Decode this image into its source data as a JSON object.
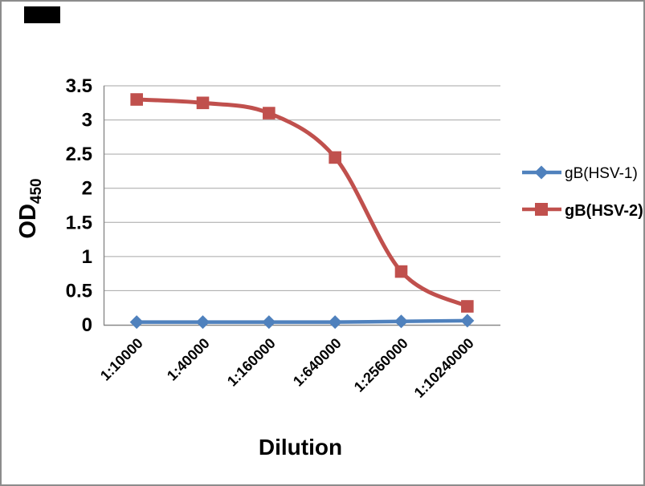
{
  "chart_data": {
    "type": "line",
    "title": "",
    "xlabel": "Dilution",
    "ylabel_main": "OD",
    "ylabel_sub": "450",
    "categories": [
      "1:10000",
      "1:40000",
      "1:160000",
      "1:640000",
      "1:2560000",
      "1:10240000"
    ],
    "series": [
      {
        "name": "gB(HSV-1)",
        "color": "#4F81BD",
        "marker": "diamond",
        "values": [
          0.04,
          0.04,
          0.04,
          0.04,
          0.05,
          0.06
        ]
      },
      {
        "name": "gB(HSV-2)",
        "color": "#C0504D",
        "marker": "square",
        "values": [
          3.3,
          3.25,
          3.1,
          2.45,
          0.78,
          0.27
        ]
      }
    ],
    "ylim": [
      0,
      3.5
    ],
    "ytick_step": 0.5,
    "yticks": [
      "3.5",
      "3",
      "2.5",
      "2",
      "1.5",
      "1",
      "0.5",
      "0"
    ],
    "grid": true,
    "smooth_lines": true,
    "legend_position": "right"
  },
  "colors": {
    "background": "#FFFFFF",
    "frame_border": "#8C8C8C",
    "axis_line": "#898989",
    "gridline": "#A6A6A6",
    "corner_box": "#000000",
    "series_hsv1": "#4F81BD",
    "series_hsv2": "#C0504D"
  }
}
